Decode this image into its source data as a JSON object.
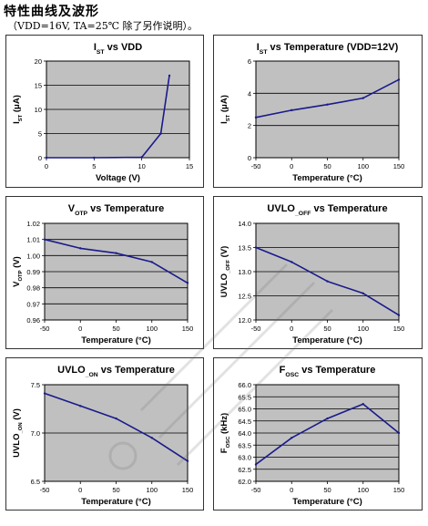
{
  "page": {
    "heading": "特性曲线及波形",
    "subheading": "（VDD=16V, TA=25℃ 除了另作说明）。"
  },
  "colors": {
    "plot_bg": "#c0c0c0",
    "line": "#1a1a8c",
    "grid": "#000000"
  },
  "chart_data": [
    {
      "type": "line",
      "title": "IST vs VDD",
      "title_parts": [
        [
          "I",
          ""
        ],
        [
          "ST",
          "sub"
        ],
        [
          " vs VDD",
          ""
        ]
      ],
      "xlabel": "Voltage (V)",
      "ylabel_parts": [
        [
          "I",
          ""
        ],
        [
          "ST",
          "sub"
        ],
        [
          " (μA)",
          ""
        ]
      ],
      "xlim": [
        0,
        15
      ],
      "ylim": [
        0,
        20
      ],
      "xticks": [
        0,
        5,
        10,
        15
      ],
      "yticks": [
        0,
        5,
        10,
        15,
        20
      ],
      "ytick_labels": [
        "0",
        "5",
        "10",
        "15",
        "20"
      ],
      "grid": "horizontal",
      "x": [
        0,
        5,
        10,
        12,
        12.9
      ],
      "y": [
        0,
        0,
        0.1,
        5,
        17
      ]
    },
    {
      "type": "line",
      "title": "IST vs Temperature (VDD=12V)",
      "title_parts": [
        [
          "I",
          ""
        ],
        [
          "ST",
          "sub"
        ],
        [
          " vs Temperature (VDD=12V)",
          ""
        ]
      ],
      "xlabel": "Temperature (°C)",
      "ylabel_parts": [
        [
          "I",
          ""
        ],
        [
          "ST",
          "sub"
        ],
        [
          " (μA)",
          ""
        ]
      ],
      "xlim": [
        -50,
        150
      ],
      "ylim": [
        0,
        6
      ],
      "xticks": [
        -50,
        0,
        50,
        100,
        150
      ],
      "yticks": [
        0,
        2,
        4,
        6
      ],
      "ytick_labels": [
        "0",
        "2",
        "4",
        "6"
      ],
      "grid": "horizontal",
      "x": [
        -50,
        0,
        50,
        100,
        150
      ],
      "y": [
        2.5,
        2.95,
        3.3,
        3.7,
        4.85
      ]
    },
    {
      "type": "line",
      "title": "VOTP vs Temperature",
      "title_parts": [
        [
          "V",
          ""
        ],
        [
          "OTP",
          "sub"
        ],
        [
          " vs Temperature",
          ""
        ]
      ],
      "xlabel": "Temperature (°C)",
      "ylabel_parts": [
        [
          "V",
          ""
        ],
        [
          "OTP",
          "sub"
        ],
        [
          " (V)",
          ""
        ]
      ],
      "xlim": [
        -50,
        150
      ],
      "ylim": [
        0.96,
        1.02
      ],
      "xticks": [
        -50,
        0,
        50,
        100,
        150
      ],
      "yticks": [
        0.96,
        0.97,
        0.98,
        0.99,
        1.0,
        1.01,
        1.02
      ],
      "ytick_labels": [
        "0.96",
        "0.97",
        "0.98",
        "0.99",
        "1.00",
        "1.01",
        "1.02"
      ],
      "grid": "horizontal",
      "x": [
        -50,
        0,
        50,
        100,
        150
      ],
      "y": [
        1.01,
        1.0045,
        1.0015,
        0.996,
        0.983
      ]
    },
    {
      "type": "line",
      "title": "UVLO_OFF vs Temperature",
      "title_parts": [
        [
          "UVLO",
          ""
        ],
        [
          "_OFF",
          "sub"
        ],
        [
          " vs Temperature",
          ""
        ]
      ],
      "xlabel": "Temperature (°C)",
      "ylabel_parts": [
        [
          "UVLO",
          ""
        ],
        [
          "_OFF",
          "sub"
        ],
        [
          " (V)",
          ""
        ]
      ],
      "xlim": [
        -50,
        150
      ],
      "ylim": [
        12.0,
        14.0
      ],
      "xticks": [
        -50,
        0,
        50,
        100,
        150
      ],
      "yticks": [
        12.0,
        12.5,
        13.0,
        13.5,
        14.0
      ],
      "ytick_labels": [
        "12.0",
        "12.5",
        "13.0",
        "13.5",
        "14.0"
      ],
      "grid": "horizontal",
      "x": [
        -50,
        0,
        50,
        100,
        150
      ],
      "y": [
        13.5,
        13.2,
        12.8,
        12.55,
        12.1
      ]
    },
    {
      "type": "line",
      "title": "UVLO_ON vs Temperature",
      "title_parts": [
        [
          "UVLO",
          ""
        ],
        [
          "_ON",
          "sub"
        ],
        [
          " vs Temperature",
          ""
        ]
      ],
      "xlabel": "Temperature (°C)",
      "ylabel_parts": [
        [
          "UVLO",
          ""
        ],
        [
          "_ON",
          "sub"
        ],
        [
          " (V)",
          ""
        ]
      ],
      "xlim": [
        -50,
        150
      ],
      "ylim": [
        6.5,
        7.5
      ],
      "xticks": [
        -50,
        0,
        50,
        100,
        150
      ],
      "yticks": [
        6.5,
        7.0,
        7.5
      ],
      "ytick_labels": [
        "6.5",
        "7.0",
        "7.5"
      ],
      "grid": "horizontal",
      "x": [
        -50,
        0,
        50,
        100,
        150
      ],
      "y": [
        7.41,
        7.28,
        7.15,
        6.95,
        6.71
      ]
    },
    {
      "type": "line",
      "title": "FOSC vs Temperature",
      "title_parts": [
        [
          "F",
          ""
        ],
        [
          "OSC",
          "sub"
        ],
        [
          " vs Temperature",
          ""
        ]
      ],
      "xlabel": "Temperature (°C)",
      "ylabel_parts": [
        [
          "F",
          ""
        ],
        [
          "OSC",
          "sub"
        ],
        [
          " (kHz)",
          ""
        ]
      ],
      "xlim": [
        -50,
        150
      ],
      "ylim": [
        62.0,
        66.0
      ],
      "xticks": [
        -50,
        0,
        50,
        100,
        150
      ],
      "yticks": [
        62.0,
        62.5,
        63.0,
        63.5,
        64.0,
        64.5,
        65.0,
        65.5,
        66.0
      ],
      "ytick_labels": [
        "62.0",
        "62.5",
        "63.0",
        "63.5",
        "64.0",
        "64.5",
        "65.0",
        "65.5",
        "66.0"
      ],
      "grid": "horizontal",
      "x": [
        -50,
        0,
        50,
        100,
        150
      ],
      "y": [
        62.7,
        63.8,
        64.6,
        65.2,
        64.0
      ]
    }
  ]
}
